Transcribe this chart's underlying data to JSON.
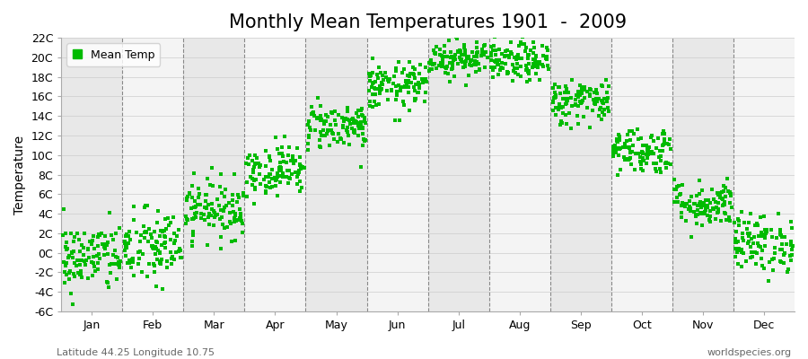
{
  "title": "Monthly Mean Temperatures 1901  -  2009",
  "ylabel": "Temperature",
  "xlabel_months": [
    "Jan",
    "Feb",
    "Mar",
    "Apr",
    "May",
    "Jun",
    "Jul",
    "Aug",
    "Sep",
    "Oct",
    "Nov",
    "Dec"
  ],
  "ylim": [
    -6,
    22
  ],
  "yticks": [
    -6,
    -4,
    -2,
    0,
    2,
    4,
    6,
    8,
    10,
    12,
    14,
    16,
    18,
    20,
    22
  ],
  "ytick_labels": [
    "-6C",
    "-4C",
    "-2C",
    "0C",
    "2C",
    "4C",
    "6C",
    "8C",
    "10C",
    "12C",
    "14C",
    "16C",
    "18C",
    "20C",
    "22C"
  ],
  "dot_color": "#00BB00",
  "dot_size": 6,
  "background_color": "#ffffff",
  "panel_color": "#f0f0f0",
  "band_color_odd": "#e8e8e8",
  "band_color_even": "#f4f4f4",
  "dashed_line_color": "#888888",
  "title_fontsize": 15,
  "axis_label_fontsize": 10,
  "tick_fontsize": 9,
  "legend_label": "Mean Temp",
  "footer_left": "Latitude 44.25 Longitude 10.75",
  "footer_right": "worldspecies.org",
  "monthly_means": [
    -0.5,
    0.5,
    4.5,
    8.5,
    13.0,
    17.0,
    20.0,
    19.5,
    15.5,
    10.5,
    5.0,
    1.0
  ],
  "monthly_stds": [
    1.8,
    2.0,
    1.5,
    1.3,
    1.2,
    1.2,
    1.0,
    1.0,
    1.2,
    1.2,
    1.2,
    1.5
  ],
  "n_years": 109
}
